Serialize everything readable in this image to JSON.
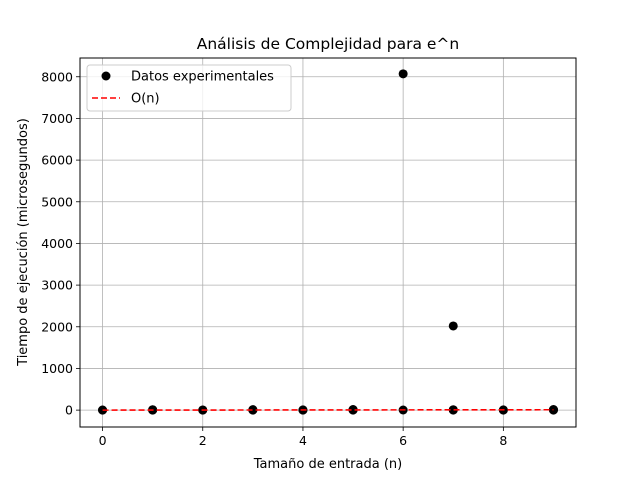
{
  "chart_data": {
    "type": "scatter",
    "title": "Análisis de Complejidad para e^n",
    "xlabel": "Tamaño de entrada (n)",
    "ylabel": "Tiempo de ejecución (microsegundos)",
    "xlim": [
      -0.45,
      9.45
    ],
    "ylim": [
      -405,
      8450
    ],
    "xticks": [
      0,
      2,
      4,
      6,
      8
    ],
    "xtick_labels": [
      "0",
      "2",
      "4",
      "6",
      "8"
    ],
    "yticks": [
      0,
      1000,
      2000,
      3000,
      4000,
      5000,
      6000,
      7000,
      8000
    ],
    "ytick_labels": [
      "0",
      "1000",
      "2000",
      "3000",
      "4000",
      "5000",
      "6000",
      "7000",
      "8000"
    ],
    "grid": true,
    "legend_position": "top-left",
    "series": [
      {
        "name": "Datos experimentales",
        "kind": "scatter",
        "color": "#000000",
        "x": [
          0,
          0,
          1,
          1,
          1,
          2,
          2,
          3,
          3,
          3,
          4,
          4,
          5,
          5,
          5,
          6,
          6,
          7,
          7,
          7,
          8,
          8,
          9,
          9,
          9
        ],
        "y": [
          0,
          3,
          0,
          5,
          10,
          0,
          4,
          0,
          6,
          12,
          0,
          5,
          0,
          8,
          15,
          8070,
          3,
          2020,
          0,
          10,
          0,
          6,
          0,
          7,
          14
        ]
      },
      {
        "name": "O(n)",
        "kind": "line",
        "style": "dashed",
        "color": "#ff0000",
        "x": [
          0,
          1,
          2,
          3,
          4,
          5,
          6,
          7,
          8,
          9
        ],
        "y": [
          0,
          1,
          2,
          3,
          4,
          5,
          6,
          7,
          8,
          9
        ]
      }
    ]
  }
}
